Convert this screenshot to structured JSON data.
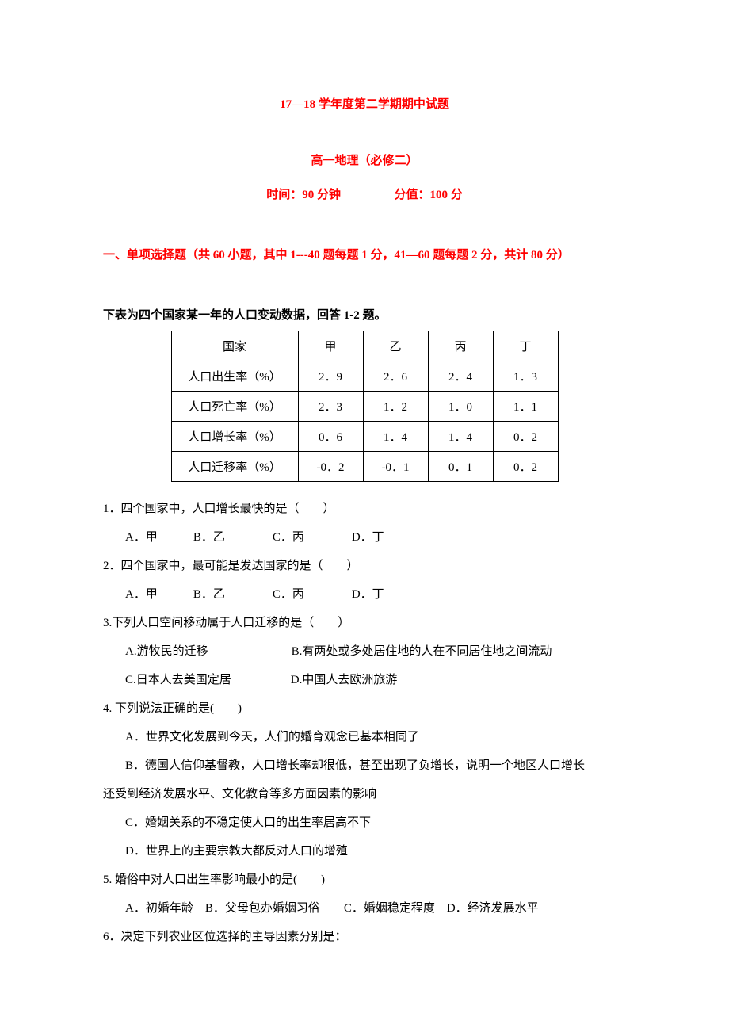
{
  "header": {
    "title_main": "17—18 学年度第二学期期中试题",
    "title_sub": "高一地理（必修二）",
    "time_label": "时间：90 分钟",
    "score_label": "分值：100 分",
    "section_mc": "一、单项选择题（共 60 小题，其中 1---40 题每题 1 分，41—60 题每题 2 分，共计 80 分）"
  },
  "table": {
    "intro": "下表为四个国家某一年的人口变动数据，回答 1-2 题。",
    "columns": [
      "国家",
      "甲",
      "乙",
      "丙",
      "丁"
    ],
    "rows": [
      [
        "人口出生率（%）",
        "2．9",
        "2．6",
        "2．4",
        "1．3"
      ],
      [
        "人口死亡率（%）",
        "2．3",
        "1．2",
        "1．0",
        "1．1"
      ],
      [
        "人口增长率（%）",
        "0．6",
        "1．4",
        "1．4",
        "0．2"
      ],
      [
        "人口迁移率（%）",
        "-0．2",
        "-0．1",
        "0．1",
        "0．2"
      ]
    ],
    "col_widths": [
      "160px",
      "82px",
      "82px",
      "82px",
      "82px"
    ],
    "border_color": "#000000",
    "font_size": 15
  },
  "questions": [
    {
      "text": "1．四个国家中，人口增长最快的是（　　）",
      "options_line": "A．甲　　　B．乙　　　　C．丙　　　　D．丁"
    },
    {
      "text": "2．四个国家中，最可能是发达国家的是（　　）",
      "options_line": "A．甲　　　B．乙　　　　C．丙　　　　D．丁"
    },
    {
      "text": "3.下列人口空间移动属于人口迁移的是（　　）",
      "options_multi": [
        "A.游牧民的迁移　　　　　　　B.有两处或多处居住地的人在不同居住地之间流动",
        "C.日本人去美国定居　　　　　D.中国人去欧洲旅游"
      ]
    },
    {
      "text": "4. 下列说法正确的是(　　)",
      "options_multi": [
        "A．世界文化发展到今天，人们的婚育观念已基本相同了",
        "B．德国人信仰基督教，人口增长率却很低，甚至出现了负增长，说明一个地区人口增长",
        "还受到经济发展水平、文化教育等多方面因素的影响",
        "C．婚姻关系的不稳定使人口的出生率居高不下",
        "D．世界上的主要宗教大都反对人口的增殖"
      ],
      "no_indent_lines": [
        2
      ]
    },
    {
      "text": "5. 婚俗中对人口出生率影响最小的是(　　)",
      "options_line": "A．初婚年龄　B．父母包办婚姻习俗　　C．婚姻稳定程度　D．经济发展水平"
    },
    {
      "text": "6．决定下列农业区位选择的主导因素分别是："
    }
  ],
  "styling": {
    "text_color": "#000000",
    "red_color": "#ff0000",
    "background_color": "#ffffff",
    "body_font_size": 15,
    "line_height": 2.4
  }
}
